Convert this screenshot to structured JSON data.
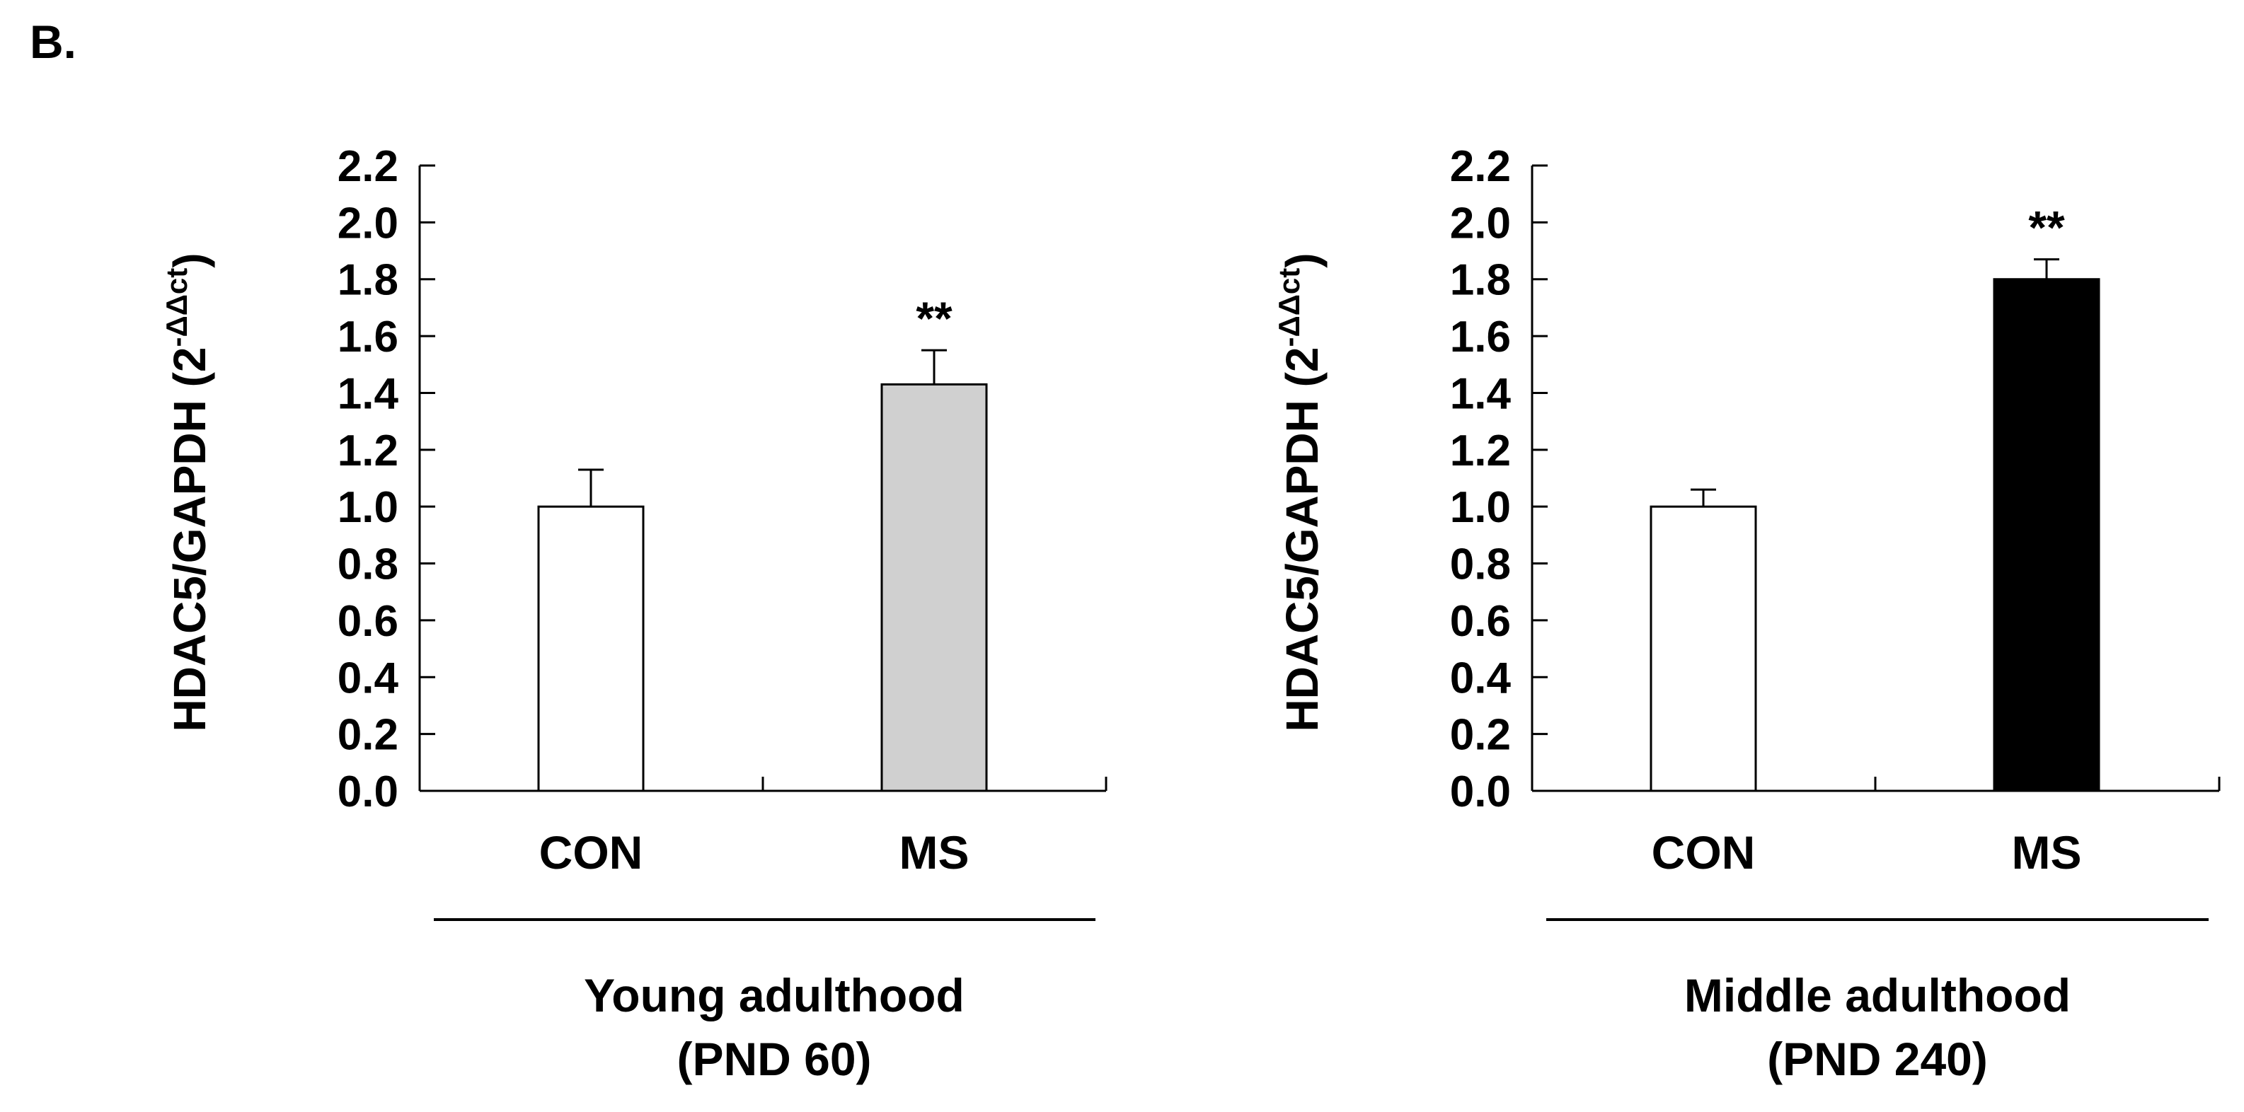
{
  "panel_label": "B.",
  "chart_data": [
    {
      "type": "bar",
      "ylabel_main": "HDAC5/GAPDH (2",
      "ylabel_sup": "-ΔΔct",
      "ylabel_close": ")",
      "ylim": [
        0,
        2.2
      ],
      "yticks": [
        "0.0",
        "0.2",
        "0.4",
        "0.6",
        "0.8",
        "1.0",
        "1.2",
        "1.4",
        "1.6",
        "1.8",
        "2.0",
        "2.2"
      ],
      "categories": [
        "CON",
        "MS"
      ],
      "values": [
        1.0,
        1.43
      ],
      "errors": [
        0.13,
        0.12
      ],
      "bar_colors": [
        "#ffffff",
        "#d0d0d0"
      ],
      "annotations": [
        "",
        "**"
      ],
      "group_label": [
        "Young adulthood",
        "(PND 60)"
      ],
      "grid": false
    },
    {
      "type": "bar",
      "ylabel_main": "HDAC5/GAPDH (2",
      "ylabel_sup": "-ΔΔct",
      "ylabel_close": ")",
      "ylim": [
        0,
        2.2
      ],
      "yticks": [
        "0.0",
        "0.2",
        "0.4",
        "0.6",
        "0.8",
        "1.0",
        "1.2",
        "1.4",
        "1.6",
        "1.8",
        "2.0",
        "2.2"
      ],
      "categories": [
        "CON",
        "MS"
      ],
      "values": [
        1.0,
        1.8
      ],
      "errors": [
        0.06,
        0.07
      ],
      "bar_colors": [
        "#ffffff",
        "#000000"
      ],
      "annotations": [
        "",
        "**"
      ],
      "group_label": [
        "Middle adulthood",
        "(PND 240)"
      ],
      "grid": false
    }
  ]
}
